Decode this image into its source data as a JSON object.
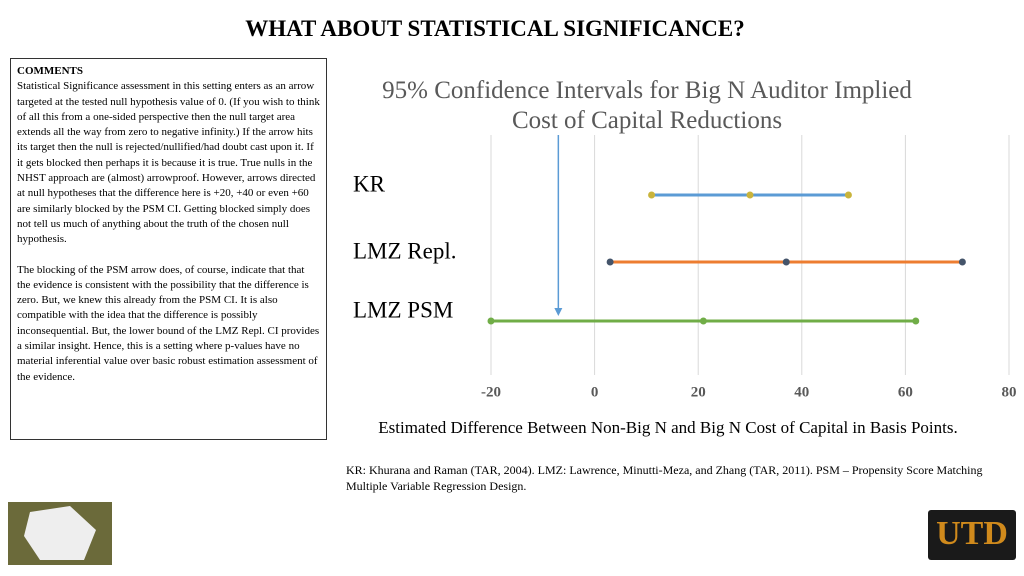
{
  "title": "WHAT ABOUT STATISTICAL SIGNIFICANCE?",
  "comments": {
    "heading": "COMMENTS",
    "paragraphs": [
      "Statistical Significance assessment in this setting enters as an arrow targeted at the tested null hypothesis value of 0. (If you wish to think of all this from a one-sided perspective then the null target area extends all the way from zero to negative infinity.) If the arrow hits its target then the null is rejected/nullified/had doubt cast upon it. If it gets blocked then perhaps it is because it is true. True nulls in the NHST approach are (almost) arrowproof. However, arrows directed at null hypotheses that the difference here is +20, +40 or even +60 are similarly blocked by the PSM CI. Getting blocked simply does not tell us much of anything about the truth of the chosen null hypothesis.",
      "The blocking of the PSM arrow does, of course, indicate that that the evidence is consistent with the possibility that the difference is zero. But, we knew this already from the PSM CI. It is also compatible with the idea that the difference is possibly inconsequential. But, the lower bound of the  LMZ Repl. CI provides a similar insight. Hence, this is a setting where p-values have no material inferential value over basic robust estimation assessment of the evidence."
    ]
  },
  "footnote": "KR: Khurana and Raman (TAR, 2004).  LMZ: Lawrence, Minutti-Meza, and Zhang (TAR, 2011). PSM – Propensity Score Matching Multiple Variable Regression Design.",
  "logo": "UTD",
  "chart_data": {
    "type": "interval",
    "title": "95% Confidence Intervals for Big N Auditor Implied Cost of Capital Reductions",
    "x_label": "Estimated Difference Between Non-Big N and Big N Cost of Capital in Basis Points.",
    "categories": [
      "KR",
      "LMZ Repl.",
      "LMZ PSM"
    ],
    "low": [
      11,
      3,
      -20
    ],
    "point": [
      30,
      37,
      21
    ],
    "high": [
      49,
      71,
      62
    ],
    "colors": [
      "#5b9bd5",
      "#ed7d31",
      "#70ad47"
    ],
    "marker_colors": [
      "#c9b43c",
      "#44546a",
      "#70ad47"
    ],
    "arrow_value": -7,
    "xlim": [
      -20,
      80
    ],
    "xticks": [
      -20,
      0,
      20,
      40,
      60,
      80
    ],
    "grid": true
  }
}
